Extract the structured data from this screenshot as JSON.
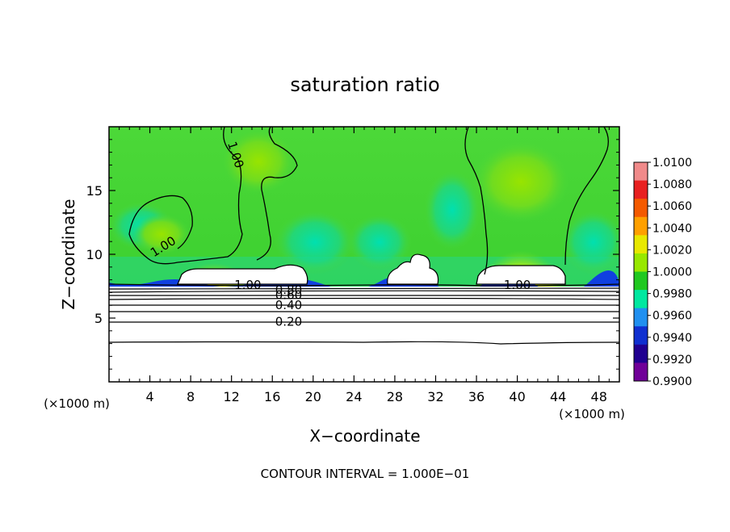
{
  "chart_data": {
    "type": "heatmap",
    "title": "saturation ratio",
    "xlabel": "X−coordinate",
    "ylabel": "Z−coordinate",
    "x_unit_left": "(×1000 m)",
    "x_unit_right": "(×1000 m)",
    "footer": "CONTOUR INTERVAL = 1.000E−01",
    "xlim": [
      0,
      50
    ],
    "ylim": [
      0,
      20
    ],
    "x_ticks": [
      "4",
      "8",
      "12",
      "16",
      "20",
      "24",
      "28",
      "32",
      "36",
      "40",
      "44",
      "48"
    ],
    "x_tick_values": [
      4,
      8,
      12,
      16,
      20,
      24,
      28,
      32,
      36,
      40,
      44,
      48
    ],
    "y_ticks": [
      "5",
      "10",
      "15"
    ],
    "y_tick_values": [
      5,
      10,
      15
    ],
    "colorbar": {
      "labels": [
        "1.0100",
        "1.0080",
        "1.0060",
        "1.0040",
        "1.0020",
        "1.0000",
        "0.9980",
        "0.9960",
        "0.9940",
        "0.9920",
        "0.9900"
      ],
      "min": 0.99,
      "max": 1.01,
      "colors": [
        "#f08a8a",
        "#e82020",
        "#f45a00",
        "#ffa000",
        "#e8e800",
        "#98e800",
        "#20c820",
        "#00e8a0",
        "#2090f0",
        "#1030d0",
        "#200090",
        "#700098"
      ]
    },
    "contour_labels": [
      {
        "text": "1.00",
        "x": 12.4,
        "z": 17.8,
        "angle": 72
      },
      {
        "text": "1.00",
        "x": 5.3,
        "z": 10.6,
        "angle": -32
      },
      {
        "text": "1.00",
        "x": 13.6,
        "z": 7.6,
        "angle": 0
      },
      {
        "text": "0.80",
        "x": 17.6,
        "z": 7.2,
        "angle": 0
      },
      {
        "text": "0.60",
        "x": 17.6,
        "z": 6.8,
        "angle": 0
      },
      {
        "text": "0.40",
        "x": 17.6,
        "z": 6.0,
        "angle": 0
      },
      {
        "text": "0.20",
        "x": 17.6,
        "z": 4.7,
        "angle": 0
      },
      {
        "text": "1.00",
        "x": 40.0,
        "z": 7.6,
        "angle": 0
      }
    ],
    "grid": false,
    "legend": "colorbar-right"
  }
}
